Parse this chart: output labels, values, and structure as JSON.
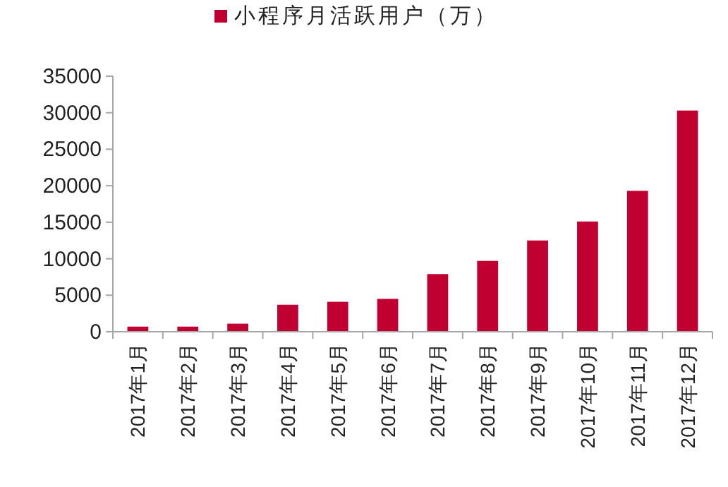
{
  "chart_data": {
    "type": "bar",
    "categories": [
      "2017年1月",
      "2017年2月",
      "2017年3月",
      "2017年4月",
      "2017年5月",
      "2017年6月",
      "2017年7月",
      "2017年8月",
      "2017年9月",
      "2017年10月",
      "2017年11月",
      "2017年12月"
    ],
    "series": [
      {
        "name": "小程序月活跃用户（万）",
        "color": "#c00030",
        "values": [
          700,
          700,
          1100,
          3700,
          4100,
          4500,
          7900,
          9700,
          12500,
          15100,
          19300,
          30300
        ]
      }
    ],
    "ylim": [
      0,
      35000
    ],
    "yticks": [
      0,
      5000,
      10000,
      15000,
      20000,
      25000,
      30000,
      35000
    ],
    "grid": false,
    "legend": "top"
  }
}
